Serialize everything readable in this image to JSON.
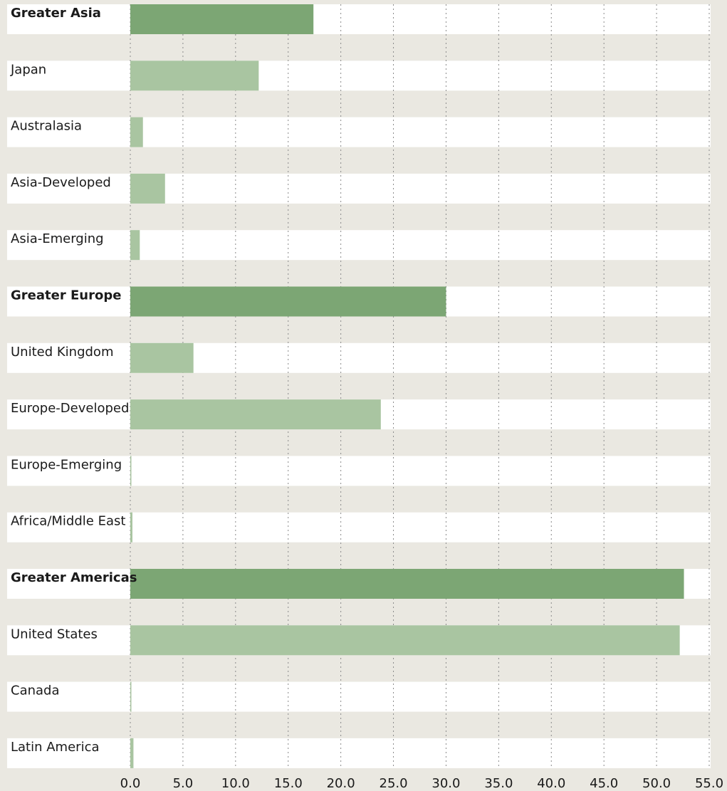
{
  "chart_data": {
    "type": "bar",
    "orientation": "horizontal",
    "categories": [
      "Greater Asia",
      "Japan",
      "Australasia",
      "Asia-Developed",
      "Asia-Emerging",
      "Greater Europe",
      "United Kingdom",
      "Europe-Developed",
      "Europe-Emerging",
      "Africa/Middle East",
      "Greater Americas",
      "United States",
      "Canada",
      "Latin America"
    ],
    "values": [
      17.4,
      12.2,
      1.2,
      3.3,
      0.9,
      30.0,
      6.0,
      23.8,
      0.1,
      0.2,
      52.6,
      52.2,
      0.1,
      0.3
    ],
    "emphasis": [
      true,
      false,
      false,
      false,
      false,
      true,
      false,
      false,
      false,
      false,
      true,
      false,
      false,
      false
    ],
    "colors": {
      "emphasis": "#7ca674",
      "normal": "#a9c5a1"
    },
    "xlim": [
      0,
      55
    ],
    "xticks": [
      {
        "value": 0,
        "label": "0.0"
      },
      {
        "value": 5,
        "label": "5.0"
      },
      {
        "value": 10,
        "label": "10.0"
      },
      {
        "value": 15,
        "label": "15.0"
      },
      {
        "value": 20,
        "label": "20.0"
      },
      {
        "value": 25,
        "label": "25.0"
      },
      {
        "value": 30,
        "label": "30.0"
      },
      {
        "value": 35,
        "label": "35.0"
      },
      {
        "value": 40,
        "label": "40.0"
      },
      {
        "value": 45,
        "label": "45.0"
      },
      {
        "value": 50,
        "label": "50.0"
      },
      {
        "value": 55,
        "label": "55.0"
      }
    ],
    "grid": true
  }
}
